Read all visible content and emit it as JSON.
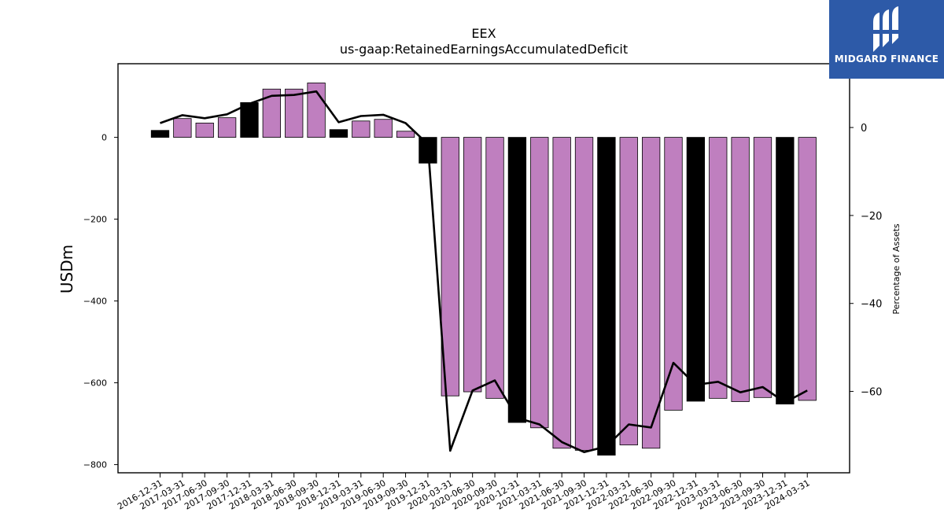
{
  "chart_data": {
    "type": "bar+line",
    "title": "EEX",
    "subtitle": "us-gaap:RetainedEarningsAccumulatedDeficit",
    "ylabel_left": "USDm",
    "ylabel_right": "Percentage of Assets",
    "ylim_left": [
      -820,
      180
    ],
    "ylim_right": [
      -78.5,
      14.5
    ],
    "yticks_left": [
      0,
      -200,
      -400,
      -600,
      -800
    ],
    "yticks_right": [
      0,
      -20,
      -40,
      -60
    ],
    "categories": [
      "2016-12-31",
      "2017-03-31",
      "2017-06-30",
      "2017-09-30",
      "2017-12-31",
      "2018-03-31",
      "2018-06-30",
      "2018-09-30",
      "2018-12-31",
      "2019-03-31",
      "2019-06-30",
      "2019-09-30",
      "2019-12-31",
      "2020-03-31",
      "2020-06-30",
      "2020-09-30",
      "2020-12-31",
      "2021-03-31",
      "2021-06-30",
      "2021-09-30",
      "2021-12-31",
      "2022-03-31",
      "2022-06-30",
      "2022-09-30",
      "2022-12-31",
      "2023-03-31",
      "2023-06-30",
      "2023-09-30",
      "2023-12-31",
      "2024-03-31"
    ],
    "series": [
      {
        "type": "bar",
        "values": [
          17,
          46,
          35,
          48,
          85,
          118,
          118,
          133,
          19,
          40,
          44,
          15,
          -63,
          -632,
          -622,
          -638,
          -697,
          -710,
          -760,
          -765,
          -777,
          -752,
          -760,
          -667,
          -645,
          -638,
          -646,
          -636,
          -652,
          -643
        ],
        "colors": [
          "black",
          "purple",
          "purple",
          "purple",
          "black",
          "purple",
          "purple",
          "purple",
          "black",
          "purple",
          "purple",
          "purple",
          "black",
          "purple",
          "purple",
          "purple",
          "black",
          "purple",
          "purple",
          "purple",
          "black",
          "purple",
          "purple",
          "purple",
          "black",
          "purple",
          "purple",
          "purple",
          "black",
          "purple"
        ]
      },
      {
        "type": "line",
        "axis": "right",
        "values": [
          1,
          2.8,
          2.1,
          3,
          5.4,
          7.2,
          7.4,
          8.2,
          1.2,
          2.6,
          2.9,
          1,
          -3.8,
          -73.5,
          -59.8,
          -57.5,
          -66,
          -67.5,
          -71.5,
          -73.8,
          -72.5,
          -67.5,
          -68.2,
          -53.5,
          -58.5,
          -57.8,
          -60.2,
          -59,
          -62.5,
          -59.8
        ]
      }
    ]
  },
  "colors": {
    "purple": "#bf7fbf",
    "black": "#000000",
    "line": "#000000",
    "logo_bg": "#2d5aa8"
  },
  "logo": {
    "text": "MIDGARD FINANCE"
  }
}
